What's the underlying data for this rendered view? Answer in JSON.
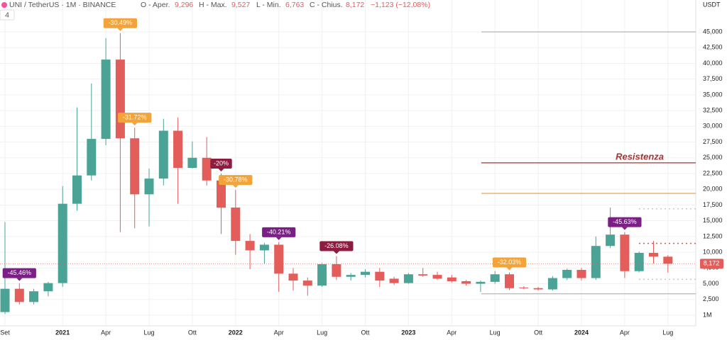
{
  "header": {
    "symbol": "UNI / TetherUS · 1M · BINANCE",
    "open_label": "O - Aper.",
    "open": "9,296",
    "high_label": "H - Max.",
    "high": "9,527",
    "low_label": "L - Min.",
    "low": "6,763",
    "close_label": "C - Chius.",
    "close": "8,172",
    "change": "−1,123 (−12,08%)",
    "currency": "USDT",
    "indicator": "4"
  },
  "chart_data": {
    "type": "candlestick",
    "categories": [
      "Set",
      null,
      null,
      null,
      "2021",
      null,
      null,
      "Apr",
      null,
      null,
      "Lug",
      null,
      null,
      "Ott",
      null,
      null,
      "2022",
      null,
      null,
      "Apr",
      null,
      null,
      "Lug",
      null,
      null,
      "Ott",
      null,
      null,
      "2023",
      null,
      null,
      "Apr",
      null,
      null,
      "Lug",
      null,
      null,
      "Ott",
      null,
      null,
      "2024",
      null,
      null,
      "Apr",
      null,
      null,
      "Lug"
    ],
    "open": [
      0.5,
      4.2,
      2.1,
      3.8,
      5.1,
      17.7,
      22.2,
      28,
      40.6,
      28.1,
      19.2,
      21.7,
      29.3,
      23.4,
      25,
      21.4,
      17.1,
      11.8,
      10.3,
      11.2,
      6.6,
      5.5,
      4.7,
      8.1,
      6.1,
      6.4,
      6.9,
      5.8,
      5.1,
      6.5,
      6.4,
      6.0,
      5.4,
      5.0,
      5.3,
      6.5,
      4.4,
      4.3,
      4.1,
      5.9,
      7.2,
      5.9,
      11.0,
      12.8,
      7.0,
      9.9,
      9.296
    ],
    "high": [
      14.8,
      5.1,
      4.2,
      5.3,
      20.5,
      33,
      36.8,
      44,
      44.8,
      29.8,
      23.3,
      31.2,
      31.4,
      27.6,
      28.3,
      22.5,
      19.9,
      12.9,
      11.5,
      11.6,
      7.5,
      6.0,
      8.3,
      9.4,
      6.7,
      7.3,
      7.5,
      6.1,
      6.7,
      7.5,
      6.9,
      6.4,
      5.6,
      5.5,
      7.0,
      6.8,
      4.6,
      4.5,
      6.2,
      7.4,
      7.5,
      12.5,
      17.1,
      13.2,
      10.1,
      11.8,
      9.527
    ],
    "low": [
      0.2,
      1.7,
      1.7,
      3.0,
      4.5,
      16.6,
      21.4,
      27,
      13.2,
      13.8,
      14.1,
      20.6,
      17.7,
      23.3,
      20.6,
      12.9,
      9.6,
      7.3,
      8.2,
      3.7,
      3.9,
      3.1,
      4.5,
      5.6,
      5.5,
      6.0,
      4.5,
      4.8,
      5.0,
      6.1,
      5.6,
      5.2,
      4.7,
      3.7,
      5.0,
      4.0,
      4.1,
      3.9,
      3.9,
      5.6,
      5.5,
      5.6,
      10.7,
      5.9,
      6.8,
      8.2,
      6.763
    ],
    "close": [
      4.2,
      2.1,
      3.8,
      5.1,
      17.7,
      22.2,
      28,
      40.6,
      28.1,
      19.2,
      21.7,
      29.3,
      23.4,
      25,
      21.4,
      17.1,
      11.8,
      10.3,
      11.2,
      6.6,
      5.5,
      4.7,
      8.1,
      6.1,
      6.4,
      6.9,
      5.5,
      5.1,
      6.5,
      6.3,
      5.8,
      5.4,
      5.0,
      5.3,
      6.5,
      4.3,
      4.3,
      4.1,
      5.9,
      7.2,
      5.9,
      11.0,
      12.8,
      7.0,
      9.9,
      9.295,
      8.172
    ],
    "up_color": "#4aa394",
    "down_color": "#e35d5b",
    "ylim": [
      -1.6875,
      50.0625
    ],
    "yticks": [
      {
        "value": 0,
        "label": "1M"
      },
      {
        "value": 2.5,
        "label": "2,500"
      },
      {
        "value": 5,
        "label": "5,000"
      },
      {
        "value": 7.5,
        "label": "7,500"
      },
      {
        "value": 10,
        "label": "10,000"
      },
      {
        "value": 12.5,
        "label": "12,500"
      },
      {
        "value": 15,
        "label": "15,000"
      },
      {
        "value": 17.5,
        "label": "17,500"
      },
      {
        "value": 20,
        "label": "20,000"
      },
      {
        "value": 22.5,
        "label": "22,500"
      },
      {
        "value": 25,
        "label": "25,000"
      },
      {
        "value": 27.5,
        "label": "27,500"
      },
      {
        "value": 30,
        "label": "30,000"
      },
      {
        "value": 32.5,
        "label": "32,500"
      },
      {
        "value": 35,
        "label": "35,000"
      },
      {
        "value": 37.5,
        "label": "37,500"
      },
      {
        "value": 40,
        "label": "40,000"
      },
      {
        "value": 42.5,
        "label": "42,500"
      },
      {
        "value": 45,
        "label": "45,000"
      }
    ],
    "grid": true,
    "price_label": {
      "value": 8.172,
      "label": "8,172",
      "color": "#e35d5b"
    },
    "levels": [
      {
        "value": 45,
        "color": "#b5b5b5",
        "style": "solid"
      },
      {
        "value": 24.2,
        "color": "#a83232",
        "style": "solid",
        "label": "Resistenza"
      },
      {
        "value": 19.35,
        "color": "#e8a35f",
        "style": "solid"
      },
      {
        "value": 3.4,
        "color": "#b5b5b5",
        "style": "solid"
      },
      {
        "value": 16.9,
        "color": "#c8c8c8",
        "style": "dotted"
      },
      {
        "value": 11.4,
        "color": "#e05050",
        "style": "dotted"
      },
      {
        "value": 5.7,
        "color": "#c8c8c8",
        "style": "dotted"
      }
    ],
    "annotations": [
      {
        "text": "-45.46%",
        "at": 1,
        "color": "#7b1e86"
      },
      {
        "text": "-30.49%",
        "at": 8,
        "color": "#f2a33a"
      },
      {
        "text": "-31.72%",
        "at": 9,
        "color": "#f2a33a"
      },
      {
        "text": "-20%",
        "at": 15,
        "color": "#8c1d40"
      },
      {
        "text": "-30.78%",
        "at": 16,
        "color": "#f2a33a"
      },
      {
        "text": "-40.21%",
        "at": 19,
        "color": "#7b1e86"
      },
      {
        "text": "-26.08%",
        "at": 23,
        "color": "#8c1d40"
      },
      {
        "text": "-32.03%",
        "at": 35,
        "color": "#f2a33a"
      },
      {
        "text": "-45.63%",
        "at": 43,
        "color": "#7b1e86"
      }
    ]
  }
}
